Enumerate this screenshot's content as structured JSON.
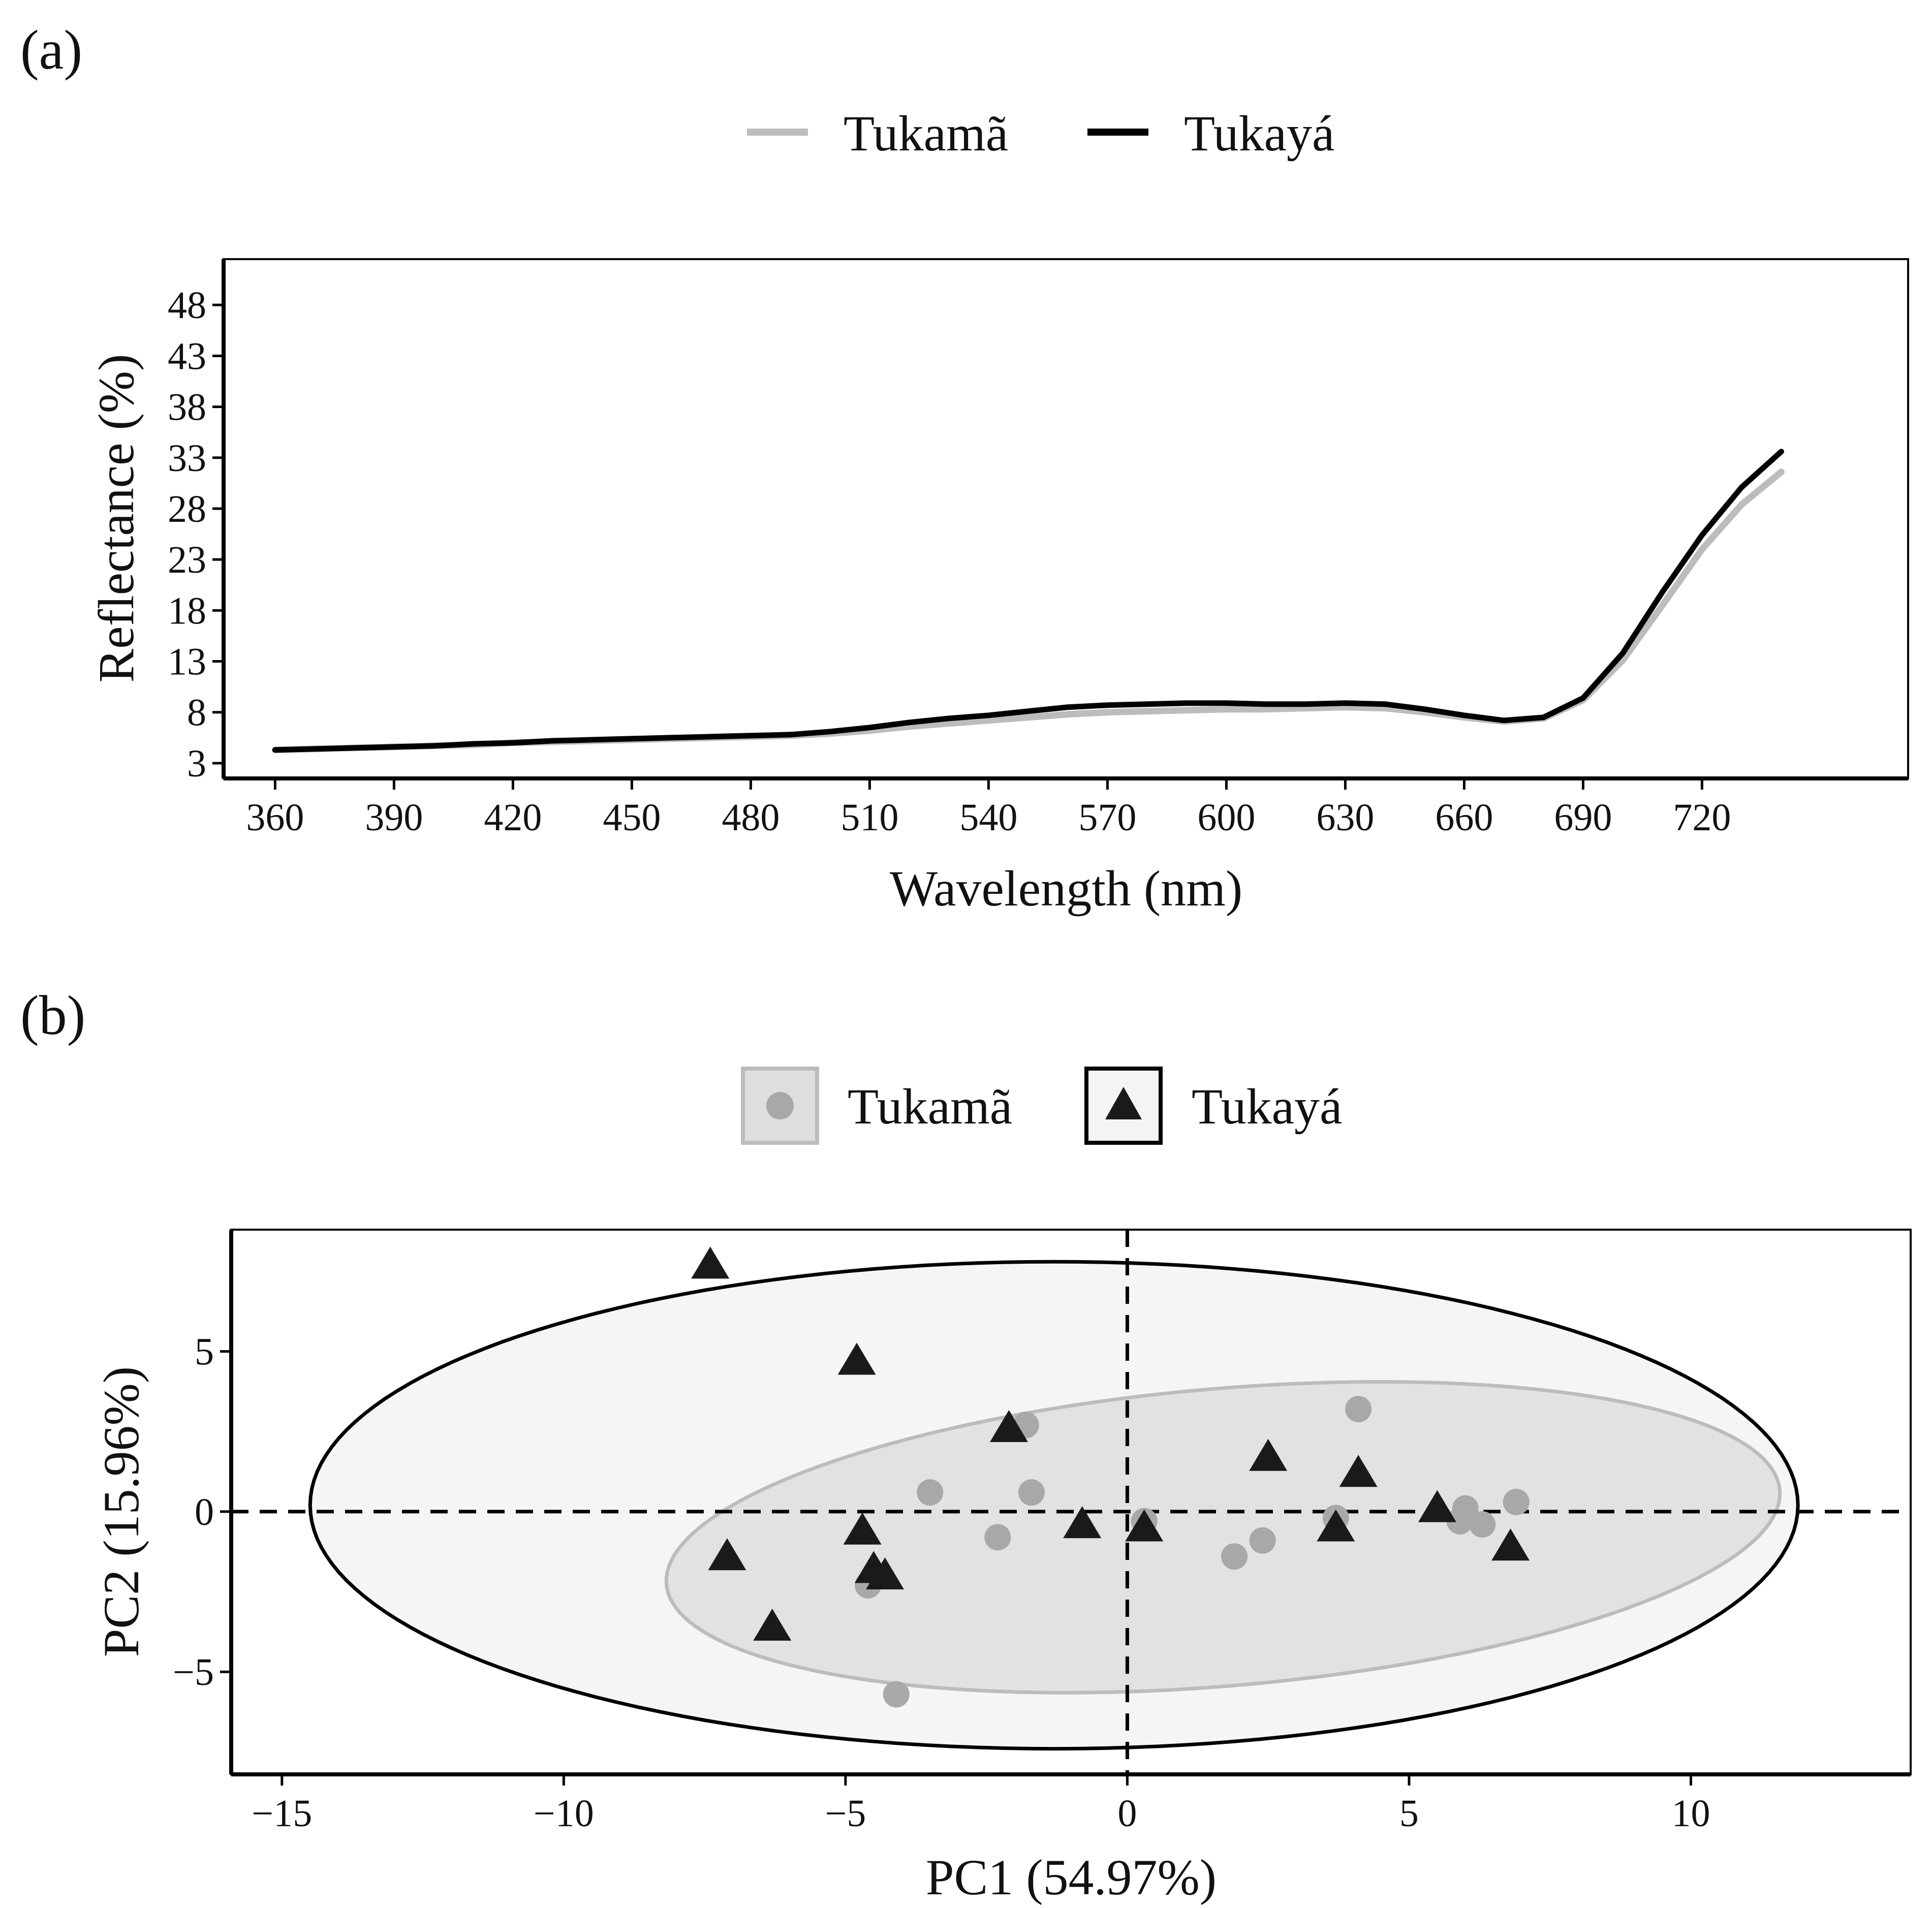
{
  "colors": {
    "tukama": "#bcbcbc",
    "tukaya": "#000000",
    "tukama_point": "#a8a8a8",
    "tukaya_point": "#1a1a1a",
    "tukama_ellipse_fill": "#dedede",
    "tukaya_ellipse_fill": "#f4f4f4"
  },
  "chart_data": [
    {
      "panel_label": "(a)",
      "type": "line",
      "xlabel": "Wavelength (nm)",
      "ylabel": "Reflectance (%)",
      "xlim": [
        347,
        772
      ],
      "ylim": [
        1.5,
        52.5
      ],
      "xticks": [
        360,
        390,
        420,
        450,
        480,
        510,
        540,
        570,
        600,
        630,
        660,
        690,
        720
      ],
      "yticks": [
        3,
        8,
        13,
        18,
        23,
        28,
        33,
        38,
        43,
        48
      ],
      "grid": false,
      "legend": {
        "position": "top",
        "entries": [
          "Tukamã",
          "Tukayá"
        ]
      },
      "x": [
        360,
        370,
        380,
        390,
        400,
        410,
        420,
        430,
        440,
        450,
        460,
        470,
        480,
        490,
        500,
        510,
        520,
        530,
        540,
        550,
        560,
        570,
        580,
        590,
        600,
        610,
        620,
        630,
        640,
        650,
        660,
        670,
        680,
        690,
        700,
        710,
        720,
        730,
        740
      ],
      "series": [
        {
          "name": "Tukamã",
          "values": [
            4.3,
            4.4,
            4.5,
            4.6,
            4.7,
            4.8,
            5.0,
            5.1,
            5.2,
            5.3,
            5.4,
            5.5,
            5.6,
            5.7,
            5.9,
            6.2,
            6.6,
            6.9,
            7.2,
            7.5,
            7.8,
            8.0,
            8.1,
            8.2,
            8.3,
            8.3,
            8.4,
            8.5,
            8.4,
            8.0,
            7.5,
            7.1,
            7.4,
            9.2,
            13.1,
            18.5,
            24.0,
            28.4,
            31.6
          ]
        },
        {
          "name": "Tukayá",
          "values": [
            4.3,
            4.4,
            4.5,
            4.6,
            4.7,
            4.9,
            5.0,
            5.2,
            5.3,
            5.4,
            5.5,
            5.6,
            5.7,
            5.8,
            6.1,
            6.5,
            7.0,
            7.4,
            7.7,
            8.1,
            8.5,
            8.7,
            8.8,
            8.9,
            8.9,
            8.8,
            8.8,
            8.9,
            8.8,
            8.3,
            7.7,
            7.2,
            7.5,
            9.4,
            13.8,
            19.8,
            25.4,
            30.1,
            33.6
          ]
        }
      ]
    },
    {
      "panel_label": "(b)",
      "type": "scatter",
      "xlabel": "PC1 (54.97%)",
      "ylabel": "PC2 (15.96%)",
      "xlim": [
        -15.9,
        13.9
      ],
      "ylim": [
        -8.2,
        8.8
      ],
      "xticks": [
        -15,
        -10,
        -5,
        0,
        5,
        10
      ],
      "xtick_labels": [
        "−15",
        "−10",
        "−5",
        "0",
        "5",
        "10"
      ],
      "yticks": [
        -5,
        0,
        5
      ],
      "ytick_labels": [
        "−5",
        "0",
        "5"
      ],
      "grid": false,
      "reference_lines": {
        "x": 0,
        "y": 0,
        "style": "dashed"
      },
      "legend": {
        "position": "top",
        "entries": [
          "Tukamã",
          "Tukayá"
        ]
      },
      "series": [
        {
          "name": "Tukamã",
          "marker": "circle",
          "ellipse": {
            "center": [
              1.7,
              -0.8
            ],
            "semi_axes": [
              10.0,
              4.6
            ],
            "angle_deg": 10
          },
          "points": [
            [
              -1.8,
              2.7
            ],
            [
              -3.5,
              0.6
            ],
            [
              -1.7,
              0.6
            ],
            [
              -2.3,
              -0.8
            ],
            [
              -4.6,
              -2.3
            ],
            [
              -4.1,
              -5.7
            ],
            [
              0.3,
              -0.3
            ],
            [
              1.9,
              -1.4
            ],
            [
              2.4,
              -0.9
            ],
            [
              3.7,
              -0.2
            ],
            [
              4.1,
              3.2
            ],
            [
              5.9,
              -0.3
            ],
            [
              6.0,
              0.1
            ],
            [
              6.3,
              -0.4
            ],
            [
              6.9,
              0.3
            ]
          ]
        },
        {
          "name": "Tukayá",
          "marker": "triangle",
          "ellipse": {
            "center": [
              -1.3,
              0.2
            ],
            "semi_axes": [
              13.2,
              7.6
            ],
            "angle_deg": 0
          },
          "points": [
            [
              -7.4,
              7.7
            ],
            [
              -4.8,
              4.7
            ],
            [
              -7.1,
              -1.4
            ],
            [
              -6.3,
              -3.6
            ],
            [
              -4.7,
              -0.6
            ],
            [
              -4.5,
              -1.8
            ],
            [
              -4.3,
              -2.0
            ],
            [
              -2.1,
              2.6
            ],
            [
              -0.8,
              -0.4
            ],
            [
              0.3,
              -0.5
            ],
            [
              2.5,
              1.7
            ],
            [
              3.7,
              -0.5
            ],
            [
              4.1,
              1.2
            ],
            [
              5.5,
              0.1
            ],
            [
              6.8,
              -1.1
            ]
          ]
        }
      ]
    }
  ]
}
